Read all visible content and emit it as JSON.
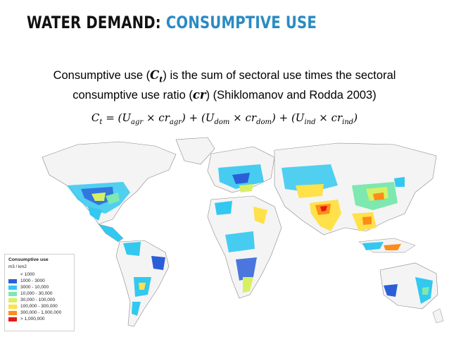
{
  "title": {
    "part1": "WATER DEMAND:",
    "part2": "CONSUMPTIVE USE"
  },
  "description": {
    "line1_a": "Consumptive use (",
    "line1_symbol": "C",
    "line1_sub": "t",
    "line1_b": ") is the sum of sectoral use times the sectoral",
    "line2_a": "consumptive use ratio (",
    "line2_symbol": "cr",
    "line2_b": ") (Shiklomanov and Rodda 2003)"
  },
  "formula": {
    "lhs": "C",
    "lhs_sub": "t",
    "terms": [
      {
        "u_sub": "agr",
        "cr_sub": "agr"
      },
      {
        "u_sub": "dom",
        "cr_sub": "dom"
      },
      {
        "u_sub": "ind",
        "cr_sub": "ind"
      }
    ]
  },
  "legend": {
    "title": "Consumptive use",
    "unit": "m3 / km2",
    "items": [
      {
        "label": "< 1000",
        "color": "#ffffff"
      },
      {
        "label": "1000 - 3000",
        "color": "#2b5fd9"
      },
      {
        "label": "3000 - 10,000",
        "color": "#33c8f0"
      },
      {
        "label": "10,000 - 30,000",
        "color": "#7de8b0"
      },
      {
        "label": "30,000 - 100,000",
        "color": "#d8f060"
      },
      {
        "label": "100,000 - 300,000",
        "color": "#ffe14a"
      },
      {
        "label": "300,000 - 1,000,000",
        "color": "#ff8c1a"
      },
      {
        "label": "> 1,000,000",
        "color": "#e81818"
      }
    ]
  }
}
